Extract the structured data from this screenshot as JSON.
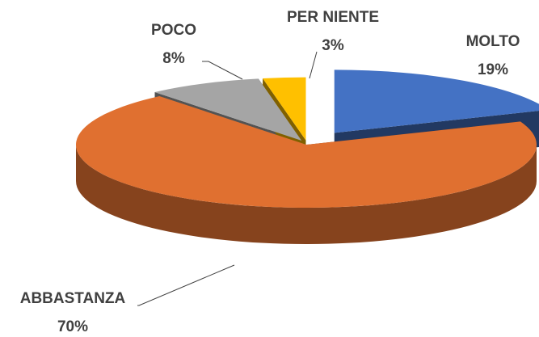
{
  "chart_data": {
    "type": "pie3d",
    "categories": [
      "MOLTO",
      "ABBASTANZA",
      "POCO",
      "PER NIENTE"
    ],
    "values": [
      19,
      70,
      8,
      3
    ],
    "value_labels": [
      "19%",
      "70%",
      "8%",
      "3%"
    ],
    "colors": [
      "#4472c4",
      "#e07030",
      "#a5a5a5",
      "#ffc000"
    ]
  }
}
